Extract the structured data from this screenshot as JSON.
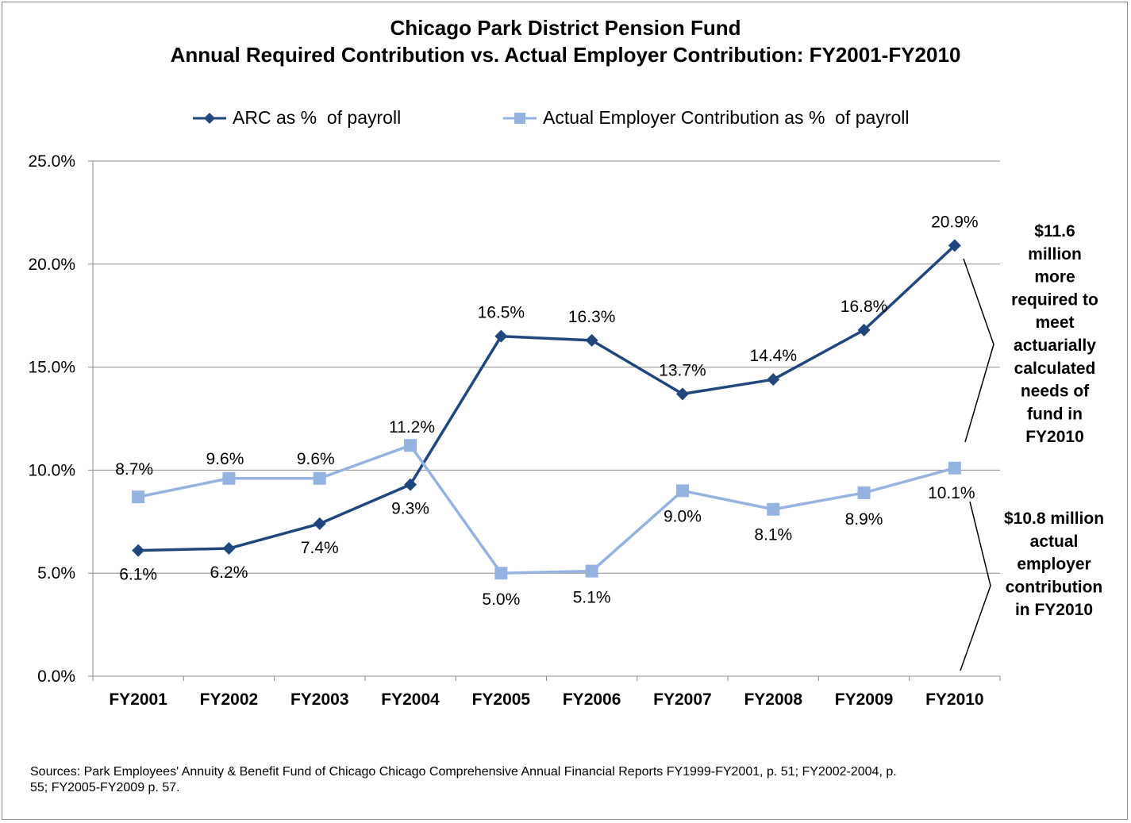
{
  "chart_data": {
    "type": "line",
    "title": "Chicago Park District Pension Fund",
    "subtitle": "Annual Required Contribution vs. Actual Employer Contribution: FY2001-FY2010",
    "categories": [
      "FY2001",
      "FY2002",
      "FY2003",
      "FY2004",
      "FY2005",
      "FY2006",
      "FY2007",
      "FY2008",
      "FY2009",
      "FY2010"
    ],
    "series": [
      {
        "name": "ARC as %  of payroll",
        "color": "#1f477d",
        "marker": "diamond",
        "values": [
          6.1,
          6.2,
          7.4,
          9.3,
          16.5,
          16.3,
          13.7,
          14.4,
          16.8,
          20.9
        ],
        "labels": [
          "6.1%",
          "6.2%",
          "7.4%",
          "9.3%",
          "16.5%",
          "16.3%",
          "13.7%",
          "14.4%",
          "16.8%",
          "20.9%"
        ]
      },
      {
        "name": "Actual Employer Contribution as %  of payroll",
        "color": "#95b3e0",
        "marker": "square",
        "values": [
          8.7,
          9.6,
          9.6,
          11.2,
          5.0,
          5.1,
          9.0,
          8.1,
          8.9,
          10.1
        ],
        "labels": [
          "8.7%",
          "9.6%",
          "9.6%",
          "11.2%",
          "5.0%",
          "5.1%",
          "9.0%",
          "8.1%",
          "8.9%",
          "10.1%"
        ]
      }
    ],
    "yticks": [
      "0.0%",
      "5.0%",
      "10.0%",
      "15.0%",
      "20.0%",
      "25.0%"
    ],
    "ylim": [
      0,
      25
    ],
    "grid": true,
    "legend": "top",
    "annotations": [
      {
        "name": "arc-annotation",
        "lines": [
          "$11.6",
          "million",
          "more",
          "required to",
          "meet",
          "actuarially",
          "calculated",
          "needs of",
          "fund in",
          "FY2010"
        ]
      },
      {
        "name": "actual-annotation",
        "lines": [
          "$10.8 million",
          "actual",
          "employer",
          "contribution",
          "in FY2010"
        ]
      }
    ]
  },
  "footnote": {
    "line1": "Sources: Park Employees' Annuity & Benefit Fund of Chicago Chicago Comprehensive Annual Financial Reports FY1999-FY2001, p. 51; FY2002-2004, p.",
    "line2": "55; FY2005-FY2009 p. 57."
  }
}
